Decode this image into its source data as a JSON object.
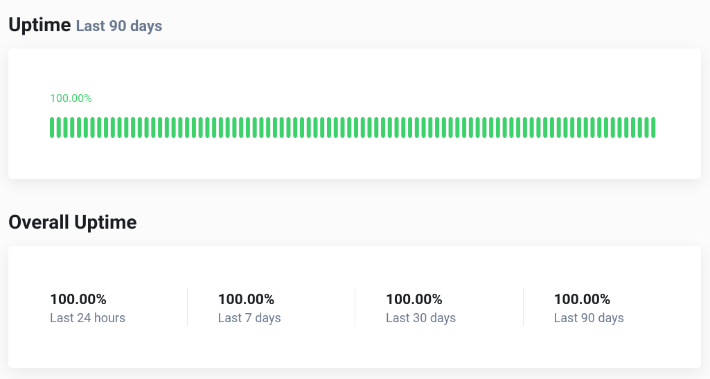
{
  "uptime_section": {
    "title": "Uptime",
    "subtitle": "Last 90 days",
    "current": "100.00%",
    "bars": {
      "ylim": [
        0,
        100
      ],
      "color": "#3dd16c",
      "values": [
        100,
        100,
        100,
        100,
        100,
        100,
        100,
        100,
        100,
        100,
        100,
        100,
        100,
        100,
        100,
        100,
        100,
        100,
        100,
        100,
        100,
        100,
        100,
        100,
        100,
        100,
        100,
        100,
        100,
        100,
        100,
        100,
        100,
        100,
        100,
        100,
        100,
        100,
        100,
        100,
        100,
        100,
        100,
        100,
        100,
        100,
        100,
        100,
        100,
        100,
        100,
        100,
        100,
        100,
        100,
        100,
        100,
        100,
        100,
        100,
        100,
        100,
        100,
        100,
        100,
        100,
        100,
        100,
        100,
        100,
        100,
        100,
        100,
        100,
        100,
        100,
        100,
        100,
        100,
        100,
        100,
        100,
        100,
        100,
        100,
        100,
        100,
        100,
        100,
        100
      ]
    }
  },
  "overall_section": {
    "title": "Overall Uptime",
    "stats": [
      {
        "value": "100.00%",
        "label": "Last 24 hours"
      },
      {
        "value": "100.00%",
        "label": "Last 7 days"
      },
      {
        "value": "100.00%",
        "label": "Last 30 days"
      },
      {
        "value": "100.00%",
        "label": "Last 90 days"
      }
    ]
  }
}
